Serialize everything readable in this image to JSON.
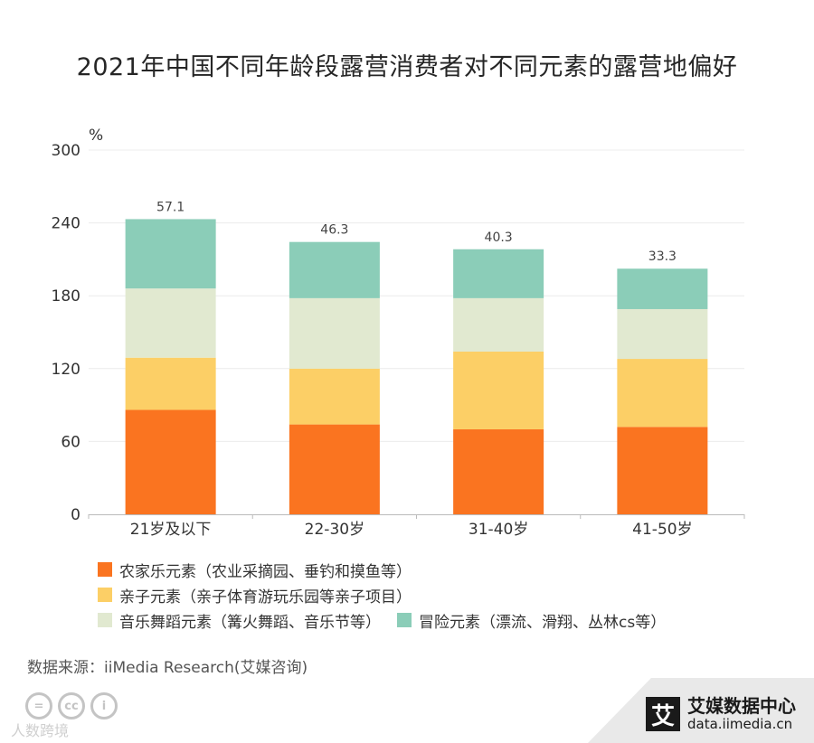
{
  "chart_data": {
    "type": "bar",
    "stacked": true,
    "title": "2021年中国不同年龄段露营消费者对不同元素的露营地偏好",
    "ylabel": "%",
    "xlabel": "",
    "ylim": [
      0,
      300
    ],
    "yticks": [
      0,
      60,
      120,
      180,
      240,
      300
    ],
    "grid": true,
    "categories": [
      "21岁及以下",
      "22-30岁",
      "31-40岁",
      "41-50岁"
    ],
    "series": [
      {
        "name": "农家乐元素（农业采摘园、垂钓和摸鱼等）",
        "color": "#fa7420",
        "values": [
          86,
          74,
          70,
          72
        ]
      },
      {
        "name": "亲子元素（亲子体育游玩乐园等亲子项目）",
        "color": "#fccf66",
        "values": [
          43,
          46,
          64,
          56
        ]
      },
      {
        "name": "音乐舞蹈元素（篝火舞蹈、音乐节等）",
        "color": "#e1e9d0",
        "values": [
          57,
          58,
          44,
          41
        ]
      },
      {
        "name": "冒险元素（漂流、滑翔、丛林cs等）",
        "color": "#8bcdb8",
        "values": [
          57.1,
          46.3,
          40.3,
          33.3
        ]
      }
    ],
    "top_labels": [
      "57.1",
      "46.3",
      "40.3",
      "33.3"
    ],
    "legend_position": "bottom-left"
  },
  "footer": {
    "source": "数据来源：iiMedia Research(艾媒咨询)",
    "watermark": "人数跨境",
    "brand_name": "艾媒数据中心",
    "brand_url": "data.iimedia.cn",
    "brand_logo": "艾"
  }
}
